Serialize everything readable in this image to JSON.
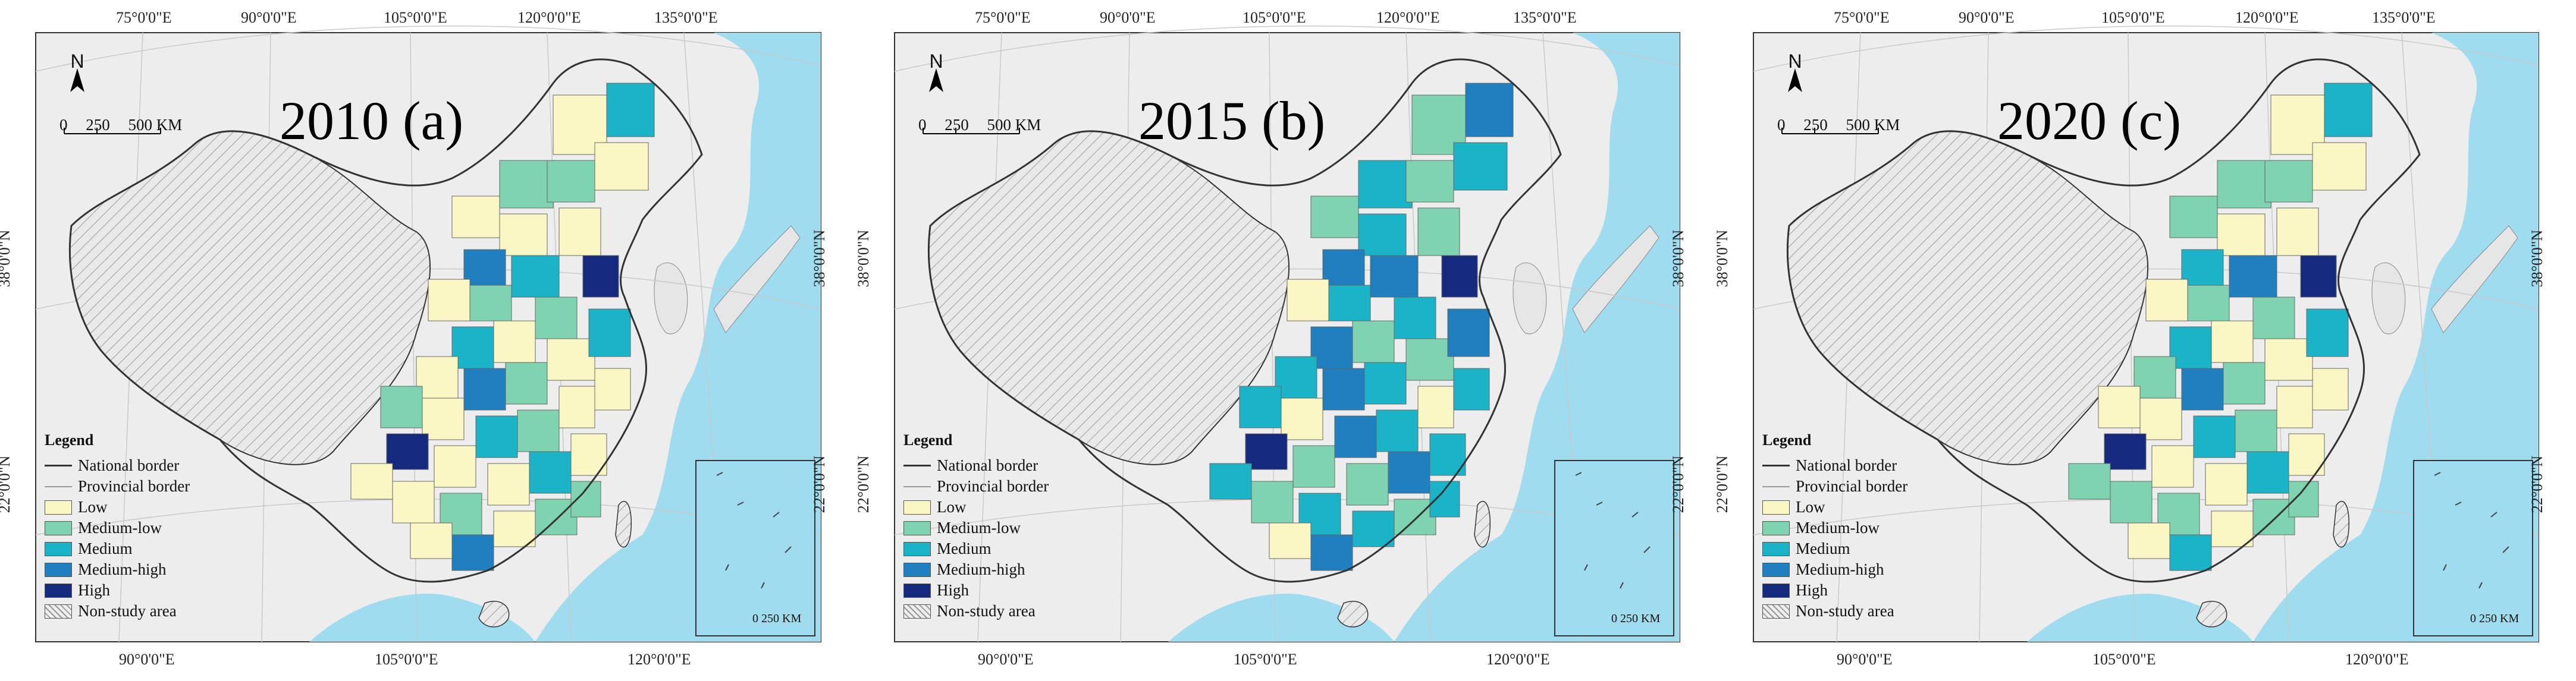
{
  "panels": [
    {
      "title": "2010 (a)",
      "regions": [
        "low",
        "medium-low",
        "low",
        "medium",
        "low",
        "medium-low",
        "low",
        "medium-high",
        "low",
        "medium-low",
        "medium",
        "low",
        "high",
        "medium-low",
        "low",
        "medium",
        "low",
        "medium-low",
        "low",
        "medium-high",
        "medium-low",
        "low",
        "medium",
        "low",
        "low",
        "medium-low",
        "medium",
        "low",
        "high",
        "low"
      ]
    },
    {
      "title": "2015 (b)",
      "regions": [
        "medium-low",
        "medium",
        "medium-low",
        "medium-high",
        "medium",
        "medium-low",
        "medium",
        "medium-high",
        "low",
        "medium",
        "medium-high",
        "medium-low",
        "high",
        "medium",
        "medium-low",
        "medium-high",
        "medium",
        "medium",
        "low",
        "medium-high",
        "medium",
        "medium-low",
        "medium-high",
        "medium",
        "low",
        "medium",
        "medium-high",
        "medium-low",
        "high",
        "medium"
      ]
    },
    {
      "title": "2020 (c)",
      "regions": [
        "medium-low",
        "medium-low",
        "low",
        "medium",
        "low",
        "medium-low",
        "low",
        "medium",
        "low",
        "medium-low",
        "medium-high",
        "low",
        "high",
        "medium-low",
        "low",
        "medium",
        "medium-low",
        "low",
        "low",
        "medium-high",
        "medium-low",
        "low",
        "medium",
        "low",
        "low",
        "medium-low",
        "medium",
        "low",
        "high",
        "medium-low"
      ]
    }
  ],
  "coords": {
    "top": [
      "75°0'0\"E",
      "90°0'0\"E",
      "105°0'0\"E",
      "120°0'0\"E",
      "135°0'0\"E"
    ],
    "bottom": [
      "90°0'0\"E",
      "105°0'0\"E",
      "120°0'0\"E"
    ],
    "left": [
      "38°0'0\"N",
      "22°0'0\"N"
    ],
    "right": [
      "38°0'0\"N",
      "22°0'0\"N"
    ]
  },
  "north_label": "N",
  "scale": {
    "labels": [
      "0",
      "250",
      "500 KM"
    ]
  },
  "inset_scale": "0  250 KM",
  "legend": {
    "title": "Legend",
    "national_border": "National border",
    "provincial_border": "Provincial border",
    "classes": [
      {
        "key": "low",
        "label": "Low",
        "color": "#fbf7c4"
      },
      {
        "key": "medium-low",
        "label": "Medium-low",
        "color": "#7fd3b0"
      },
      {
        "key": "medium",
        "label": "Medium",
        "color": "#1ab3c8"
      },
      {
        "key": "medium-high",
        "label": "Medium-high",
        "color": "#1f7fbf"
      },
      {
        "key": "high",
        "label": "High",
        "color": "#15297f"
      }
    ],
    "non_study": "Non-study area"
  },
  "colors": {
    "sea": "#9fdcef",
    "land_gray": "#e6e6e6",
    "border": "#333333",
    "hatch": "#9a9a9a"
  }
}
